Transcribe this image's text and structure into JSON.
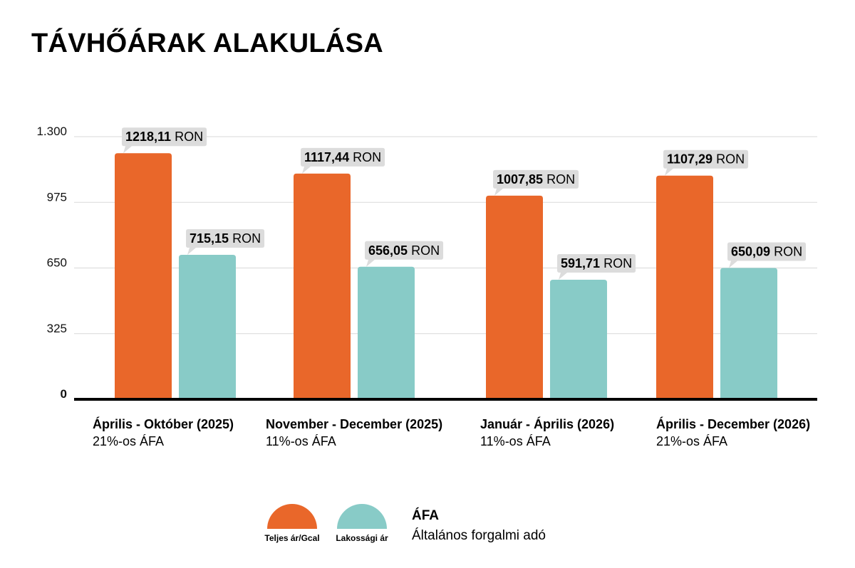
{
  "title": "TÁVHŐÁRAK ALAKULÁSA",
  "chart_data": {
    "type": "bar",
    "title": "TÁVHŐÁRAK ALAKULÁSA",
    "ylim": [
      0,
      1300
    ],
    "yticks": [
      0,
      325,
      650,
      975,
      1300
    ],
    "ytick_labels": [
      "0",
      "325",
      "650",
      "975",
      "1.300"
    ],
    "grid": true,
    "categories": [
      {
        "title": "Április - Október (2025)",
        "subtitle": "21%-os ÁFA"
      },
      {
        "title": "November - December (2025)",
        "subtitle": "11%-os ÁFA"
      },
      {
        "title": "Január - Április (2026)",
        "subtitle": "11%-os ÁFA"
      },
      {
        "title": "Április - December (2026)",
        "subtitle": "21%-os ÁFA"
      }
    ],
    "series": [
      {
        "name": "Teljes ár/Gcal",
        "color": "#e9672a",
        "values": [
          1218.11,
          1117.44,
          1007.85,
          1107.29
        ],
        "value_labels": [
          "1218,11",
          "1117,44",
          "1007,85",
          "1107,29"
        ]
      },
      {
        "name": "Lakossági ár",
        "color": "#88cbc7",
        "values": [
          715.15,
          656.05,
          591.71,
          650.09
        ],
        "value_labels": [
          "715,15",
          "656,05",
          "591,71",
          "650,09"
        ]
      }
    ],
    "unit": "RON",
    "legend_position": "bottom-center"
  },
  "note": {
    "title": "ÁFA",
    "text": "Általános forgalmi adó"
  }
}
